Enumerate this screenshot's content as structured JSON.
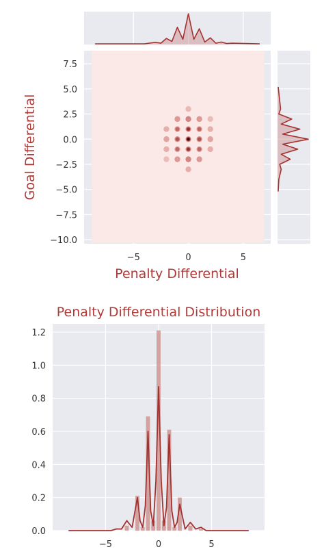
{
  "colors": {
    "axes_bg": "#e9e9f0",
    "grid": "#ffffff",
    "line": "#a3322f",
    "fill": "#c98a87",
    "kde_bg": "#fbe9e7",
    "label": "#b03a38"
  },
  "chart_data": [
    {
      "type": "heatmap",
      "subtype": "joint-kde",
      "xlabel": "Penalty Differential",
      "ylabel": "Goal Differential",
      "xlim": [
        -9.5,
        7.5
      ],
      "ylim": [
        -10.4,
        8.8
      ],
      "xticks": [
        -5,
        0,
        5
      ],
      "yticks": [
        7.5,
        5.0,
        2.5,
        0.0,
        -2.5,
        -5.0,
        -7.5,
        -10.0
      ],
      "grid": true,
      "density_peaks": [
        {
          "x": 0,
          "y": 0,
          "level": 1.0
        },
        {
          "x": 0,
          "y": 1,
          "level": 0.7
        },
        {
          "x": 0,
          "y": -1,
          "level": 0.7
        },
        {
          "x": -1,
          "y": 0,
          "level": 0.55
        },
        {
          "x": 1,
          "y": 0,
          "level": 0.55
        },
        {
          "x": -1,
          "y": 1,
          "level": 0.45
        },
        {
          "x": 1,
          "y": 1,
          "level": 0.45
        },
        {
          "x": -1,
          "y": -1,
          "level": 0.45
        },
        {
          "x": 1,
          "y": -1,
          "level": 0.45
        },
        {
          "x": 0,
          "y": 2,
          "level": 0.35
        },
        {
          "x": 0,
          "y": -2,
          "level": 0.35
        },
        {
          "x": -2,
          "y": 0,
          "level": 0.2
        },
        {
          "x": 2,
          "y": 0,
          "level": 0.2
        },
        {
          "x": -1,
          "y": 2,
          "level": 0.25
        },
        {
          "x": 1,
          "y": 2,
          "level": 0.25
        },
        {
          "x": -1,
          "y": -2,
          "level": 0.25
        },
        {
          "x": 1,
          "y": -2,
          "level": 0.25
        },
        {
          "x": -2,
          "y": 1,
          "level": 0.15
        },
        {
          "x": 2,
          "y": 1,
          "level": 0.15
        },
        {
          "x": -2,
          "y": -1,
          "level": 0.15
        },
        {
          "x": 2,
          "y": -1,
          "level": 0.15
        },
        {
          "x": 0,
          "y": -3,
          "level": 0.15
        },
        {
          "x": 0,
          "y": 3,
          "level": 0.1
        },
        {
          "x": 2,
          "y": 2,
          "level": 0.08
        },
        {
          "x": -2,
          "y": -2,
          "level": 0.08
        }
      ]
    },
    {
      "type": "area",
      "subtype": "marginal-kde-top",
      "x": [
        -8.5,
        -4,
        -3,
        -2.5,
        -2,
        -1.5,
        -1,
        -0.5,
        0,
        0.5,
        1,
        1.5,
        2,
        2.5,
        3,
        3.5,
        4,
        6.5
      ],
      "values": [
        0,
        0,
        0.05,
        0.02,
        0.18,
        0.08,
        0.55,
        0.15,
        1.0,
        0.15,
        0.5,
        0.06,
        0.2,
        0.02,
        0.06,
        0.01,
        0.02,
        0
      ],
      "xlim": [
        -9.5,
        7.5
      ]
    },
    {
      "type": "area",
      "subtype": "marginal-kde-right",
      "y": [
        5.2,
        3,
        2.5,
        2,
        1.5,
        1,
        0.5,
        0,
        -0.5,
        -1,
        -1.5,
        -2,
        -2.5,
        -3,
        -4,
        -5.2
      ],
      "values": [
        0,
        0.08,
        0.02,
        0.45,
        0.1,
        0.72,
        0.15,
        1.0,
        0.15,
        0.65,
        0.1,
        0.4,
        0.05,
        0.1,
        0.02,
        0
      ],
      "ylim": [
        -10.4,
        8.8
      ]
    },
    {
      "type": "bar",
      "subtype": "histogram-with-kde",
      "title": "Penalty Differential Distribution",
      "xlim": [
        -10,
        10
      ],
      "ylim": [
        0,
        1.25
      ],
      "xticks": [
        -5,
        0,
        5
      ],
      "yticks": [
        0.0,
        0.2,
        0.4,
        0.6,
        0.8,
        1.0,
        1.2
      ],
      "bins": [
        {
          "x": -3,
          "value": 0.03
        },
        {
          "x": -2,
          "value": 0.21
        },
        {
          "x": -1.5,
          "value": 0.02
        },
        {
          "x": -1,
          "value": 0.69
        },
        {
          "x": -0.5,
          "value": 0.06
        },
        {
          "x": 0,
          "value": 1.21
        },
        {
          "x": 0.5,
          "value": 0.06
        },
        {
          "x": 1,
          "value": 0.61
        },
        {
          "x": 1.5,
          "value": 0.02
        },
        {
          "x": 2,
          "value": 0.2
        },
        {
          "x": 3,
          "value": 0.03
        },
        {
          "x": 4,
          "value": 0.01
        }
      ],
      "kde": {
        "x": [
          -8.5,
          -4.5,
          -4,
          -3.5,
          -3,
          -2.5,
          -2,
          -1.75,
          -1.5,
          -1.25,
          -1,
          -0.75,
          -0.5,
          -0.25,
          0,
          0.25,
          0.5,
          0.75,
          1,
          1.25,
          1.5,
          1.75,
          2,
          2.5,
          3,
          3.5,
          4,
          4.5,
          8.5
        ],
        "values": [
          0,
          0,
          0.01,
          0.01,
          0.06,
          0.02,
          0.2,
          0.06,
          0.02,
          0.15,
          0.6,
          0.12,
          0.03,
          0.3,
          0.87,
          0.3,
          0.03,
          0.14,
          0.58,
          0.12,
          0.02,
          0.05,
          0.16,
          0.01,
          0.05,
          0.01,
          0.02,
          0,
          0
        ]
      },
      "grid": true
    }
  ]
}
